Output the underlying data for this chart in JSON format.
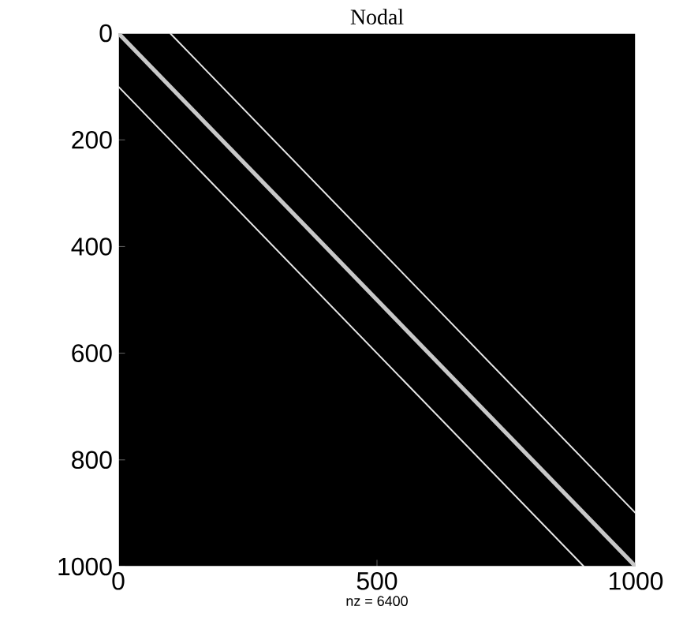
{
  "chart_data": {
    "type": "line",
    "title": "Nodal",
    "xlabel": "nz = 6400",
    "xlim": [
      0,
      1000
    ],
    "ylim": [
      1000,
      0
    ],
    "xticks": [
      0,
      500,
      1000
    ],
    "yticks": [
      0,
      200,
      400,
      600,
      800,
      1000
    ],
    "series": [
      {
        "color": "#c8c8c8",
        "x": [
          0,
          1000
        ],
        "values": [
          0,
          1000
        ]
      },
      {
        "color": "#e8e8e8",
        "x": [
          100,
          1000
        ],
        "values": [
          0,
          900
        ]
      },
      {
        "color": "#e8e8e8",
        "x": [
          0,
          900
        ],
        "values": [
          100,
          1000
        ]
      }
    ]
  }
}
